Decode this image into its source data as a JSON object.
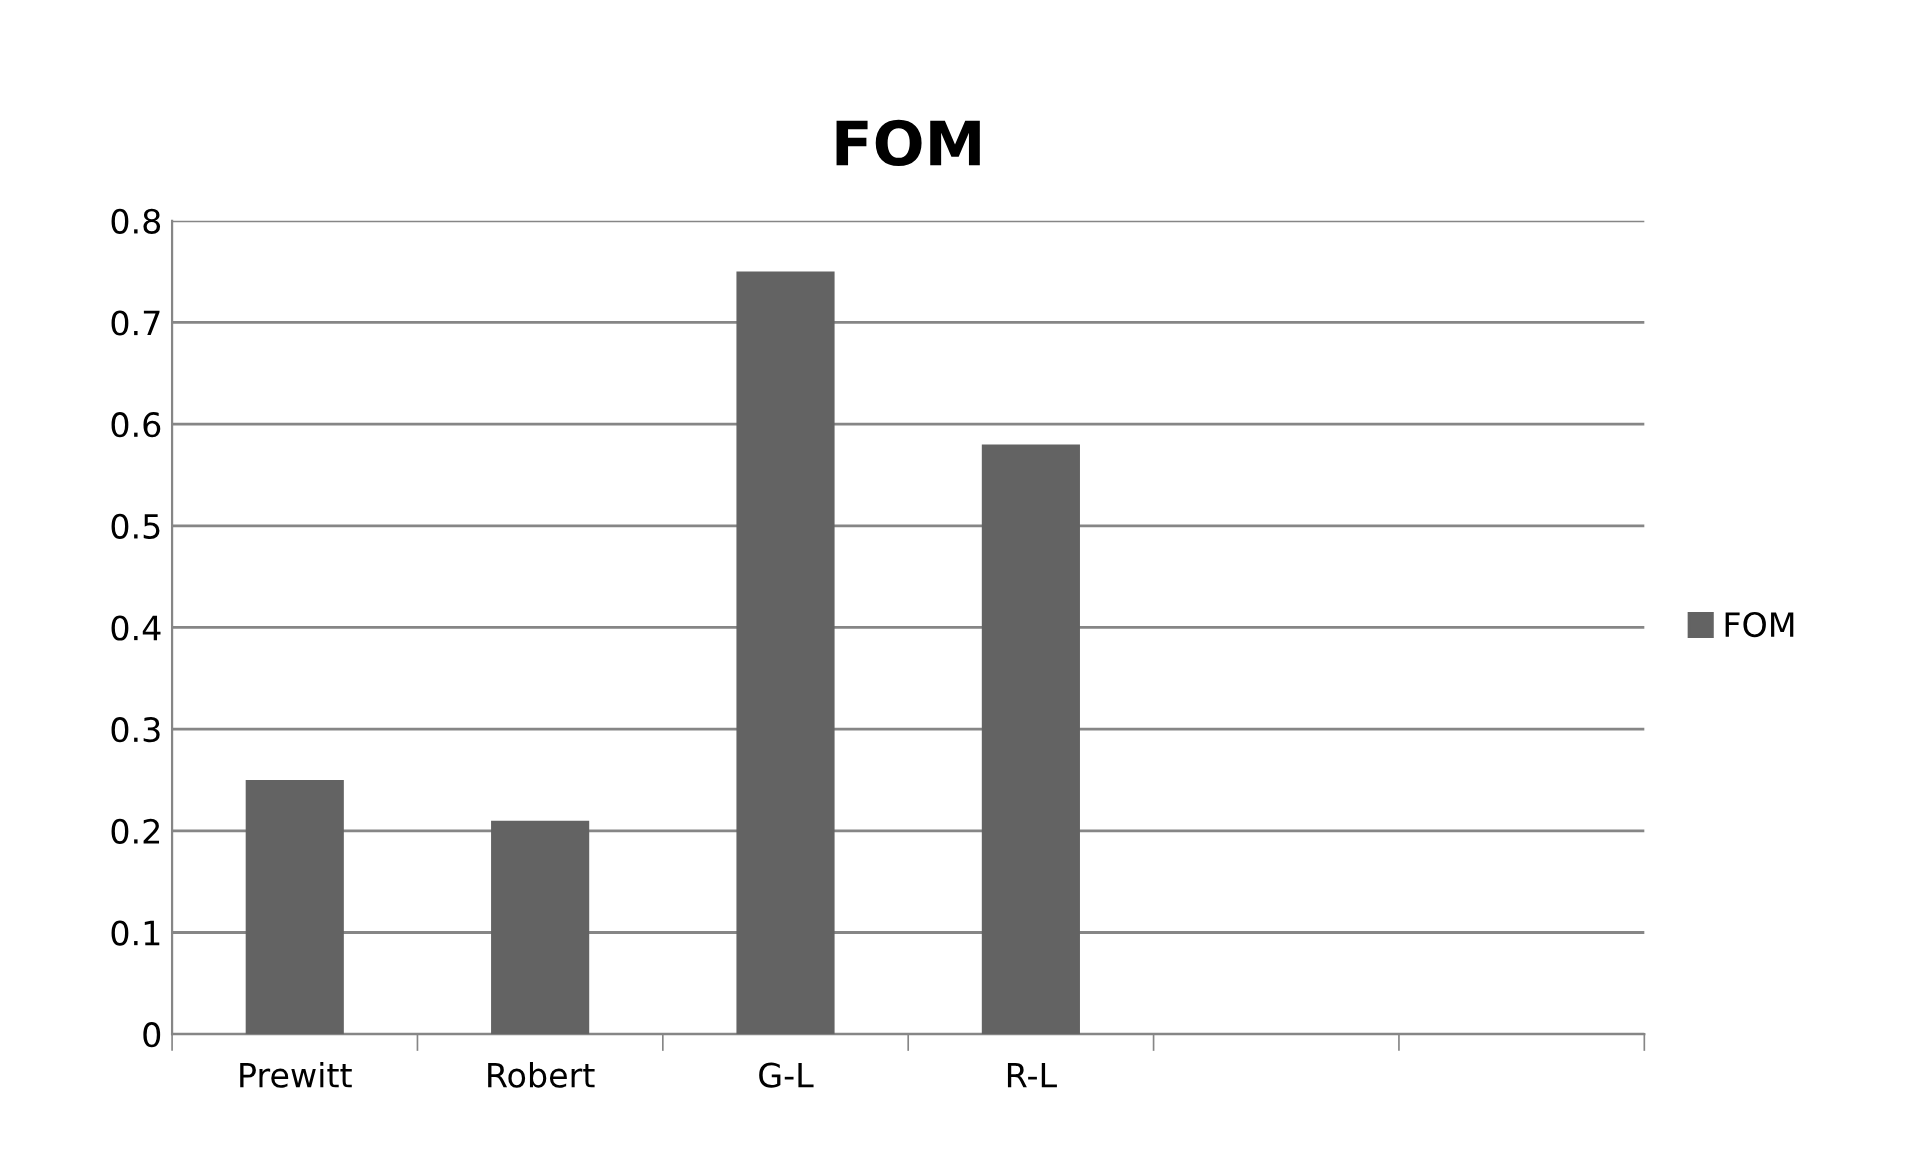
{
  "chart_data": {
    "type": "bar",
    "title": "FOM",
    "categories": [
      "Prewitt",
      "Robert",
      "G-L",
      "R-L",
      null,
      null
    ],
    "series": [
      {
        "name": "FOM",
        "color": "#636363",
        "values": [
          0.25,
          0.21,
          0.75,
          0.58,
          null,
          null
        ]
      }
    ],
    "ylim": [
      0,
      0.8
    ],
    "yticks": [
      0,
      0.1,
      0.2,
      0.3,
      0.4,
      0.5,
      0.6,
      0.7,
      0.8
    ],
    "grid": "y",
    "legend": "right"
  }
}
